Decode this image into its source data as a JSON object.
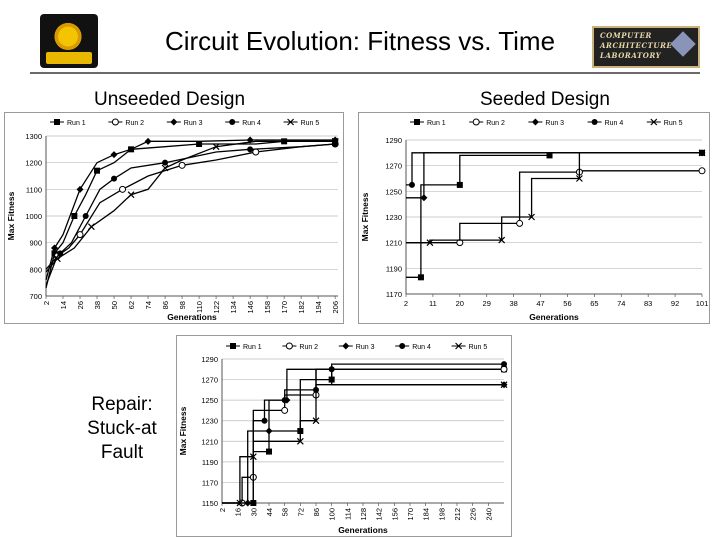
{
  "header": {
    "title": "Circuit Evolution: Fitness vs. Time"
  },
  "repair_label": [
    "Repair:",
    "Stuck-at",
    "Fault"
  ],
  "colors": {
    "series": "#000000",
    "grid": "#bdbdbd",
    "rule": "#6a6a6a"
  },
  "chart_data": [
    {
      "id": "unseeded",
      "type": "line",
      "title": "Unseeded Design",
      "xlabel": "Generations",
      "ylabel": "Max Fitness",
      "xlim": [
        2,
        208
      ],
      "ylim": [
        700,
        1300
      ],
      "yticks": [
        700,
        800,
        900,
        1000,
        1100,
        1200,
        1300
      ],
      "xticks": [
        2,
        14,
        26,
        38,
        50,
        62,
        74,
        86,
        98,
        110,
        122,
        134,
        146,
        158,
        170,
        182,
        194,
        206
      ],
      "grid": true,
      "legend_position": "top",
      "series": [
        {
          "name": "Run 1",
          "marker": "square",
          "points": [
            [
              2,
              730
            ],
            [
              8,
              860
            ],
            [
              14,
              900
            ],
            [
              22,
              1000
            ],
            [
              30,
              1080
            ],
            [
              38,
              1170
            ],
            [
              50,
              1200
            ],
            [
              62,
              1250
            ],
            [
              86,
              1260
            ],
            [
              110,
              1270
            ],
            [
              150,
              1270
            ],
            [
              170,
              1280
            ],
            [
              206,
              1280
            ]
          ]
        },
        {
          "name": "Run 2",
          "marker": "circle",
          "points": [
            [
              2,
              740
            ],
            [
              10,
              850
            ],
            [
              18,
              880
            ],
            [
              26,
              930
            ],
            [
              40,
              1050
            ],
            [
              56,
              1100
            ],
            [
              74,
              1150
            ],
            [
              98,
              1190
            ],
            [
              122,
              1210
            ],
            [
              150,
              1240
            ],
            [
              182,
              1260
            ],
            [
              206,
              1270
            ]
          ]
        },
        {
          "name": "Run 3",
          "marker": "diamond",
          "points": [
            [
              2,
              760
            ],
            [
              8,
              880
            ],
            [
              14,
              930
            ],
            [
              26,
              1100
            ],
            [
              38,
              1200
            ],
            [
              50,
              1230
            ],
            [
              62,
              1250
            ],
            [
              74,
              1280
            ],
            [
              110,
              1280
            ],
            [
              146,
              1285
            ],
            [
              206,
              1285
            ]
          ]
        },
        {
          "name": "Run 4",
          "marker": "circle-filled",
          "points": [
            [
              2,
              800
            ],
            [
              12,
              860
            ],
            [
              20,
              900
            ],
            [
              30,
              1000
            ],
            [
              40,
              1100
            ],
            [
              50,
              1140
            ],
            [
              62,
              1180
            ],
            [
              86,
              1200
            ],
            [
              122,
              1240
            ],
            [
              146,
              1250
            ],
            [
              182,
              1260
            ],
            [
              206,
              1270
            ]
          ]
        },
        {
          "name": "Run 5",
          "marker": "x",
          "points": [
            [
              2,
              790
            ],
            [
              10,
              840
            ],
            [
              22,
              880
            ],
            [
              34,
              960
            ],
            [
              50,
              1020
            ],
            [
              62,
              1080
            ],
            [
              74,
              1100
            ],
            [
              86,
              1180
            ],
            [
              98,
              1210
            ],
            [
              122,
              1260
            ],
            [
              150,
              1280
            ],
            [
              206,
              1280
            ]
          ]
        }
      ]
    },
    {
      "id": "seeded",
      "type": "line",
      "title": "Seeded Design",
      "xlabel": "Generations",
      "ylabel": "Max Fitness",
      "xlim": [
        2,
        101
      ],
      "ylim": [
        1170,
        1290
      ],
      "yticks": [
        1170,
        1190,
        1210,
        1230,
        1250,
        1270,
        1290
      ],
      "xticks": [
        2,
        11,
        20,
        29,
        38,
        47,
        56,
        65,
        74,
        83,
        92,
        101
      ],
      "grid": true,
      "legend_position": "top",
      "series": [
        {
          "name": "Run 1",
          "marker": "square",
          "points": [
            [
              2,
              1183
            ],
            [
              7,
              1183
            ],
            [
              7,
              1255
            ],
            [
              20,
              1255
            ],
            [
              20,
              1278
            ],
            [
              50,
              1278
            ],
            [
              50,
              1280
            ],
            [
              101,
              1280
            ]
          ]
        },
        {
          "name": "Run 2",
          "marker": "circle",
          "points": [
            [
              2,
              1210
            ],
            [
              20,
              1210
            ],
            [
              20,
              1225
            ],
            [
              40,
              1225
            ],
            [
              40,
              1265
            ],
            [
              60,
              1265
            ],
            [
              60,
              1266
            ],
            [
              101,
              1266
            ]
          ]
        },
        {
          "name": "Run 3",
          "marker": "diamond",
          "points": [
            [
              2,
              1245
            ],
            [
              8,
              1245
            ],
            [
              8,
              1280
            ],
            [
              101,
              1280
            ]
          ]
        },
        {
          "name": "Run 4",
          "marker": "circle-filled",
          "points": [
            [
              2,
              1255
            ],
            [
              4,
              1255
            ],
            [
              4,
              1280
            ],
            [
              101,
              1280
            ]
          ]
        },
        {
          "name": "Run 5",
          "marker": "x",
          "points": [
            [
              2,
              1210
            ],
            [
              10,
              1210
            ],
            [
              10,
              1212
            ],
            [
              34,
              1212
            ],
            [
              34,
              1230
            ],
            [
              44,
              1230
            ],
            [
              44,
              1260
            ],
            [
              60,
              1260
            ],
            [
              60,
              1280
            ],
            [
              101,
              1280
            ]
          ]
        }
      ]
    },
    {
      "id": "repair",
      "type": "line",
      "title": "",
      "xlabel": "Generations",
      "ylabel": "Max Fitness",
      "xlim": [
        2,
        254
      ],
      "ylim": [
        1150,
        1290
      ],
      "yticks": [
        1150,
        1170,
        1190,
        1210,
        1230,
        1250,
        1270,
        1290
      ],
      "xticks": [
        2,
        16,
        30,
        44,
        58,
        72,
        86,
        100,
        114,
        128,
        142,
        156,
        170,
        184,
        198,
        212,
        226,
        240
      ],
      "grid": true,
      "legend_position": "top",
      "series": [
        {
          "name": "Run 1",
          "marker": "square",
          "points": [
            [
              2,
              1150
            ],
            [
              30,
              1150
            ],
            [
              30,
              1200
            ],
            [
              44,
              1200
            ],
            [
              44,
              1220
            ],
            [
              72,
              1220
            ],
            [
              72,
              1270
            ],
            [
              100,
              1270
            ],
            [
              100,
              1280
            ],
            [
              254,
              1280
            ]
          ]
        },
        {
          "name": "Run 2",
          "marker": "circle",
          "points": [
            [
              2,
              1150
            ],
            [
              20,
              1150
            ],
            [
              20,
              1175
            ],
            [
              30,
              1175
            ],
            [
              30,
              1240
            ],
            [
              58,
              1240
            ],
            [
              58,
              1255
            ],
            [
              86,
              1255
            ],
            [
              86,
              1280
            ],
            [
              254,
              1280
            ]
          ]
        },
        {
          "name": "Run 3",
          "marker": "diamond",
          "points": [
            [
              2,
              1150
            ],
            [
              25,
              1150
            ],
            [
              25,
              1220
            ],
            [
              44,
              1220
            ],
            [
              44,
              1250
            ],
            [
              60,
              1250
            ],
            [
              60,
              1280
            ],
            [
              100,
              1280
            ],
            [
              100,
              1265
            ],
            [
              254,
              1265
            ]
          ]
        },
        {
          "name": "Run 4",
          "marker": "circle-filled",
          "points": [
            [
              2,
              1150
            ],
            [
              30,
              1150
            ],
            [
              30,
              1230
            ],
            [
              40,
              1230
            ],
            [
              40,
              1250
            ],
            [
              58,
              1250
            ],
            [
              58,
              1260
            ],
            [
              86,
              1260
            ],
            [
              86,
              1280
            ],
            [
              100,
              1280
            ],
            [
              100,
              1285
            ],
            [
              254,
              1285
            ]
          ]
        },
        {
          "name": "Run 5",
          "marker": "x",
          "points": [
            [
              2,
              1150
            ],
            [
              18,
              1150
            ],
            [
              18,
              1195
            ],
            [
              30,
              1195
            ],
            [
              30,
              1210
            ],
            [
              72,
              1210
            ],
            [
              72,
              1230
            ],
            [
              86,
              1230
            ],
            [
              86,
              1265
            ],
            [
              254,
              1265
            ]
          ]
        }
      ]
    }
  ]
}
